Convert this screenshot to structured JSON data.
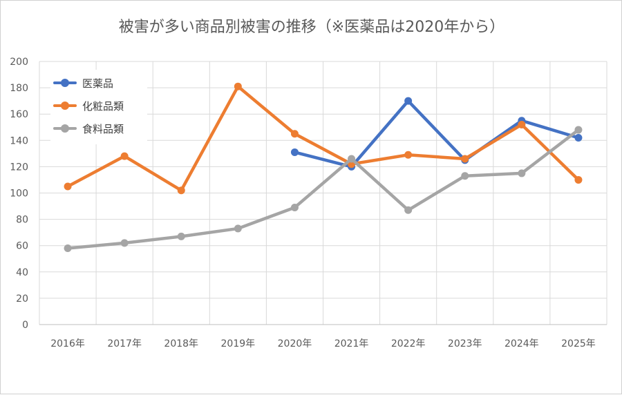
{
  "chart_data": {
    "type": "line",
    "title": "被害が多い商品別被害の推移（※医薬品は2020年から）",
    "xlabel": "",
    "ylabel": "",
    "categories": [
      "2016年",
      "2017年",
      "2018年",
      "2019年",
      "2020年",
      "2021年",
      "2022年",
      "2023年",
      "2024年",
      "2025年"
    ],
    "ylim": [
      0,
      200
    ],
    "yticks": [
      0,
      20,
      40,
      60,
      80,
      100,
      120,
      140,
      160,
      180,
      200
    ],
    "grid": true,
    "legend_position": "top-left",
    "series": [
      {
        "name": "医薬品",
        "color": "#4472c4",
        "values": [
          null,
          null,
          null,
          null,
          131,
          120,
          170,
          125,
          155,
          142
        ]
      },
      {
        "name": "化粧品類",
        "color": "#ed7d31",
        "values": [
          105,
          128,
          102,
          181,
          145,
          122,
          129,
          126,
          152,
          110
        ]
      },
      {
        "name": "食料品類",
        "color": "#a5a5a5",
        "values": [
          58,
          62,
          67,
          73,
          89,
          126,
          87,
          113,
          115,
          148
        ]
      }
    ]
  }
}
